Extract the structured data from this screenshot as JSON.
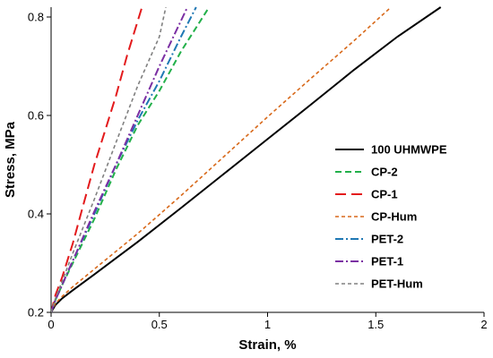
{
  "chart_data": {
    "type": "line",
    "xlabel": "Strain, %",
    "ylabel": "Stress, MPa",
    "xlim": [
      0,
      2
    ],
    "ylim": [
      0.2,
      0.82
    ],
    "xticks": [
      {
        "value": 0,
        "label": "0"
      },
      {
        "value": 0.5,
        "label": "0.5"
      },
      {
        "value": 1,
        "label": "1"
      },
      {
        "value": 1.5,
        "label": "1.5"
      },
      {
        "value": 2,
        "label": "2"
      }
    ],
    "yticks": [
      {
        "value": 0.2,
        "label": "0.2"
      },
      {
        "value": 0.4,
        "label": "0.4"
      },
      {
        "value": 0.6,
        "label": "0.6"
      },
      {
        "value": 0.8,
        "label": "0.8"
      }
    ],
    "grid": false,
    "legend_position": "right",
    "series": [
      {
        "name": "100 UHMWPE",
        "color": "#000000",
        "dash": "solid",
        "points": [
          [
            0,
            0.2
          ],
          [
            0.02,
            0.215
          ],
          [
            0.05,
            0.228
          ],
          [
            0.1,
            0.245
          ],
          [
            0.2,
            0.277
          ],
          [
            0.4,
            0.343
          ],
          [
            0.6,
            0.412
          ],
          [
            0.8,
            0.482
          ],
          [
            1.0,
            0.552
          ],
          [
            1.2,
            0.622
          ],
          [
            1.4,
            0.693
          ],
          [
            1.6,
            0.76
          ],
          [
            1.8,
            0.82
          ]
        ]
      },
      {
        "name": "CP-2",
        "color": "#22b04a",
        "dash": "dashed",
        "points": [
          [
            0,
            0.2
          ],
          [
            0.02,
            0.225
          ],
          [
            0.05,
            0.255
          ],
          [
            0.1,
            0.3
          ],
          [
            0.2,
            0.39
          ],
          [
            0.3,
            0.49
          ],
          [
            0.4,
            0.58
          ],
          [
            0.5,
            0.65
          ],
          [
            0.6,
            0.73
          ],
          [
            0.73,
            0.82
          ]
        ]
      },
      {
        "name": "CP-1",
        "color": "#e31a1c",
        "dash": "longdash",
        "points": [
          [
            0,
            0.2
          ],
          [
            0.02,
            0.235
          ],
          [
            0.05,
            0.27
          ],
          [
            0.1,
            0.34
          ],
          [
            0.15,
            0.42
          ],
          [
            0.2,
            0.5
          ],
          [
            0.25,
            0.57
          ],
          [
            0.3,
            0.64
          ],
          [
            0.35,
            0.72
          ],
          [
            0.42,
            0.82
          ]
        ]
      },
      {
        "name": "CP-Hum",
        "color": "#d8691a",
        "dash": "dotted",
        "points": [
          [
            0,
            0.2
          ],
          [
            0.02,
            0.218
          ],
          [
            0.05,
            0.232
          ],
          [
            0.1,
            0.252
          ],
          [
            0.2,
            0.288
          ],
          [
            0.4,
            0.36
          ],
          [
            0.6,
            0.437
          ],
          [
            0.8,
            0.517
          ],
          [
            1.0,
            0.597
          ],
          [
            1.2,
            0.675
          ],
          [
            1.4,
            0.752
          ],
          [
            1.57,
            0.82
          ]
        ]
      },
      {
        "name": "PET-2",
        "color": "#1f78b4",
        "dash": "dashdot",
        "points": [
          [
            0,
            0.2
          ],
          [
            0.02,
            0.225
          ],
          [
            0.05,
            0.255
          ],
          [
            0.1,
            0.305
          ],
          [
            0.2,
            0.4
          ],
          [
            0.3,
            0.5
          ],
          [
            0.4,
            0.59
          ],
          [
            0.5,
            0.67
          ],
          [
            0.6,
            0.76
          ],
          [
            0.67,
            0.82
          ]
        ]
      },
      {
        "name": "PET-1",
        "color": "#7b2fa3",
        "dash": "dashdot",
        "points": [
          [
            0,
            0.2
          ],
          [
            0.02,
            0.225
          ],
          [
            0.05,
            0.255
          ],
          [
            0.1,
            0.305
          ],
          [
            0.2,
            0.405
          ],
          [
            0.3,
            0.5
          ],
          [
            0.4,
            0.6
          ],
          [
            0.5,
            0.7
          ],
          [
            0.63,
            0.82
          ]
        ]
      },
      {
        "name": "PET-Hum",
        "color": "#808080",
        "dash": "dotted",
        "points": [
          [
            0,
            0.2
          ],
          [
            0.02,
            0.228
          ],
          [
            0.05,
            0.262
          ],
          [
            0.1,
            0.32
          ],
          [
            0.2,
            0.43
          ],
          [
            0.3,
            0.545
          ],
          [
            0.4,
            0.66
          ],
          [
            0.5,
            0.76
          ],
          [
            0.53,
            0.82
          ]
        ]
      }
    ]
  }
}
